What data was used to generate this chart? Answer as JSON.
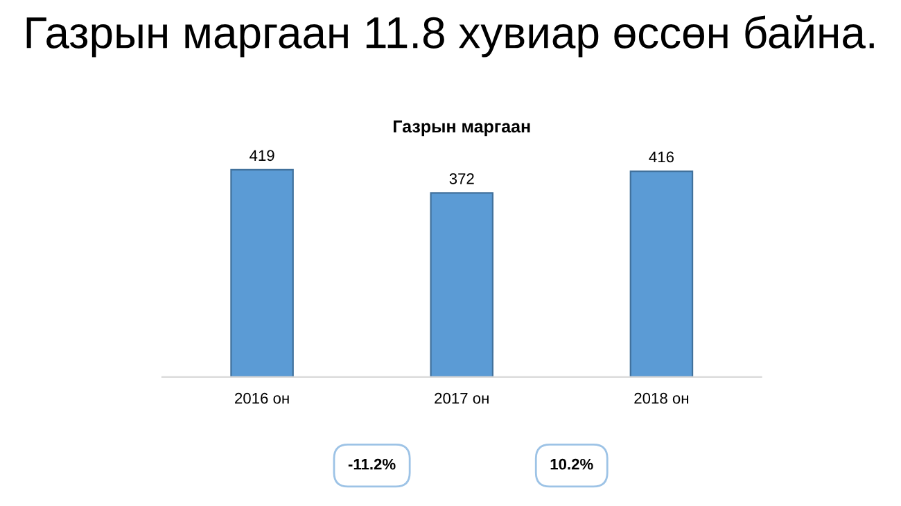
{
  "chart_data": {
    "type": "bar",
    "title": "Газрын маргаан 11.8 хувиар өссөн байна.",
    "subtitle": "Газрын маргаан",
    "categories": [
      "2016 он",
      "2017 он",
      "2018 он"
    ],
    "values": [
      419,
      372,
      416
    ],
    "color": "#5b9bd5",
    "tick_labels": "x",
    "data_labels": true,
    "grid": false,
    "legend": false,
    "annotations": [
      "-11.2%",
      "10.2%"
    ]
  }
}
